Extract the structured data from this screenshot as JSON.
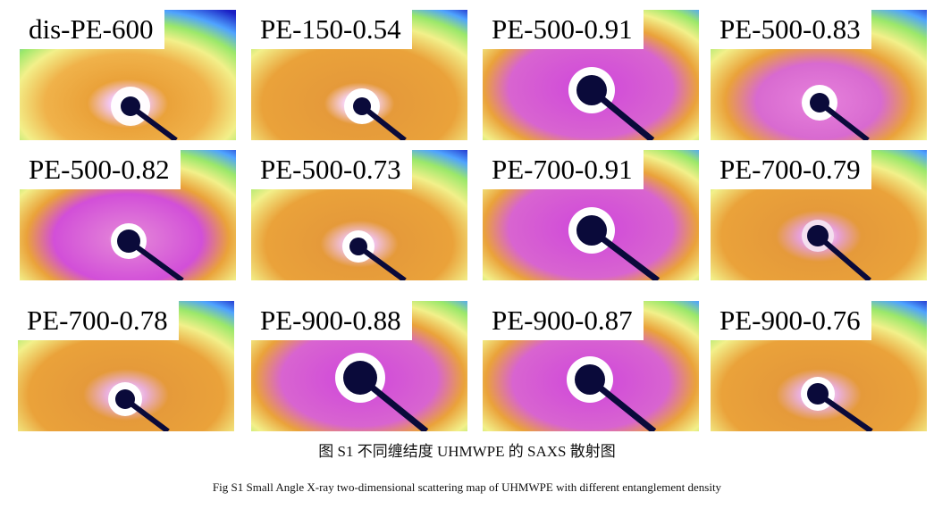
{
  "panels": [
    {
      "label": "dis-PE-600",
      "style": "dis"
    },
    {
      "label": "PE-150-0.54",
      "style": "orange"
    },
    {
      "label": "PE-500-0.91",
      "style": "magenta"
    },
    {
      "label": "PE-500-0.83",
      "style": "pinkorange"
    },
    {
      "label": "PE-500-0.82",
      "style": "magenta"
    },
    {
      "label": "PE-500-0.73",
      "style": "orange"
    },
    {
      "label": "PE-700-0.91",
      "style": "magenta"
    },
    {
      "label": "PE-700-0.79",
      "style": "orange"
    },
    {
      "label": "PE-700-0.78",
      "style": "orange"
    },
    {
      "label": "PE-900-0.88",
      "style": "magenta"
    },
    {
      "label": "PE-900-0.87",
      "style": "magenta"
    },
    {
      "label": "PE-900-0.76",
      "style": "orange"
    }
  ],
  "caption_cn": "图 S1 不同缠结度 UHMWPE 的 SAXS 散射图",
  "caption_en": "Fig S1 Small Angle X-ray two-dimensional scattering map of UHMWPE with different entanglement density",
  "colors": {
    "outer": "#1a1fc4",
    "blue_ring": "#4fa3ff",
    "green": "#9be86a",
    "yellow": "#f2f08a",
    "orange": "#eaa23a",
    "magenta": "#d24fd8",
    "beamstop": "#0a0a3a"
  }
}
